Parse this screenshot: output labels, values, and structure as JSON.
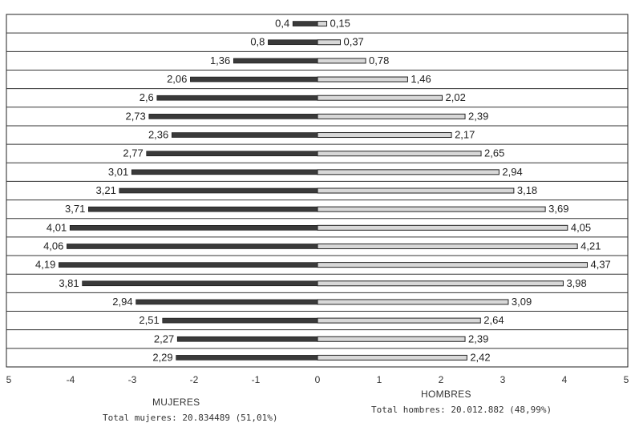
{
  "chart_data": {
    "type": "bar",
    "orientation": "horizontal",
    "style": "population-pyramid",
    "series": [
      {
        "name": "MUJERES",
        "side": "left",
        "values": [
          0.4,
          0.8,
          1.36,
          2.06,
          2.6,
          2.73,
          2.36,
          2.77,
          3.01,
          3.21,
          3.71,
          4.01,
          4.06,
          4.19,
          3.81,
          2.94,
          2.51,
          2.27,
          2.29
        ],
        "labels": [
          "0,4",
          "0,8",
          "1,36",
          "2,06",
          "2,6",
          "2,73",
          "2,36",
          "2,77",
          "3,01",
          "3,21",
          "3,71",
          "4,01",
          "4,06",
          "4,19",
          "3,81",
          "2,94",
          "2,51",
          "2,27",
          "2,29"
        ],
        "color": "#3a3a3a"
      },
      {
        "name": "HOMBRES",
        "side": "right",
        "values": [
          0.15,
          0.37,
          0.78,
          1.46,
          2.02,
          2.39,
          2.17,
          2.65,
          2.94,
          3.18,
          3.69,
          4.05,
          4.21,
          4.37,
          3.98,
          3.09,
          2.64,
          2.39,
          2.42
        ],
        "labels": [
          "0,15",
          "0,37",
          "0,78",
          "1,46",
          "2,02",
          "2,39",
          "2,17",
          "2,65",
          "2,94",
          "3,18",
          "3,69",
          "4,05",
          "4,21",
          "4,37",
          "3,98",
          "3,09",
          "2,64",
          "2,39",
          "2,42"
        ],
        "color": "#d8d8d8"
      }
    ],
    "xlim": [
      -5,
      5
    ],
    "x_ticks": [
      {
        "value": -5,
        "label": "5"
      },
      {
        "value": -4,
        "label": "-4"
      },
      {
        "value": -3,
        "label": "-3"
      },
      {
        "value": -2,
        "label": "-2"
      },
      {
        "value": -1,
        "label": "-1"
      },
      {
        "value": 0,
        "label": "0"
      },
      {
        "value": 1,
        "label": "1"
      },
      {
        "value": 2,
        "label": "2"
      },
      {
        "value": 3,
        "label": "3"
      },
      {
        "value": 4,
        "label": "4"
      },
      {
        "value": 5,
        "label": "5"
      }
    ],
    "grid": "horizontal",
    "xlabel_left": "MUJERES",
    "xlabel_right": "HOMBRES",
    "total_left": "Total mujeres: 20.834489 (51,01%)",
    "total_right": "Total hombres: 20.012.882 (48,99%)"
  }
}
